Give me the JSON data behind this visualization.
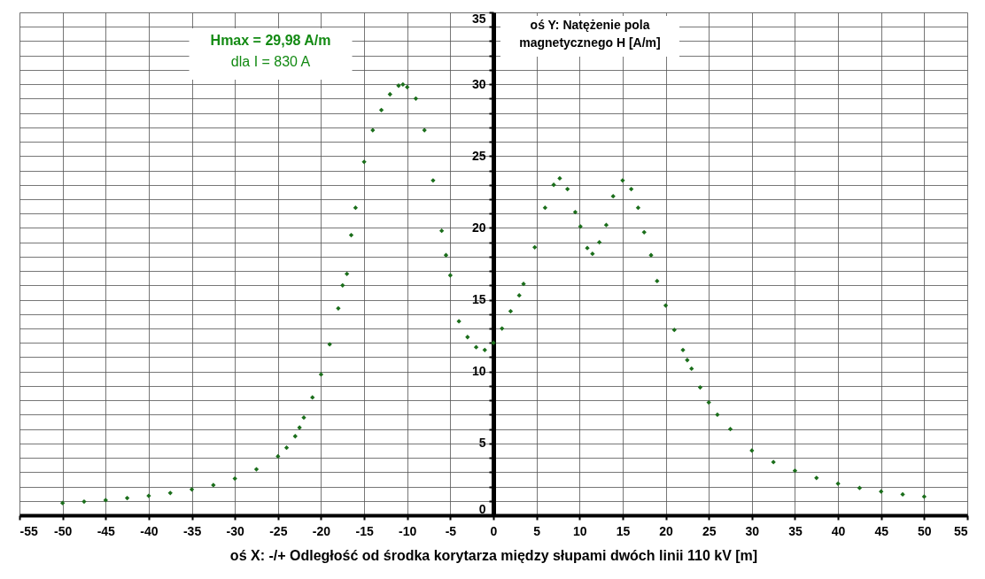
{
  "chart_data": {
    "type": "scatter",
    "xlabel": "oś X:  -/+ Odległość od środka korytarza między słupami dwóch linii 110 kV [m]",
    "ylabel": "oś Y: Natężenie pola magnetycznego H [A/m]",
    "annotations": [
      "Hmax = 29,98 A/m",
      "dla I = 830 A"
    ],
    "xlim": [
      -55,
      55
    ],
    "ylim": [
      0,
      35
    ],
    "xticks": [
      -55,
      -50,
      -45,
      -40,
      -35,
      -30,
      -25,
      -20,
      -15,
      -10,
      -5,
      0,
      5,
      10,
      15,
      20,
      25,
      30,
      35,
      40,
      45,
      50,
      55
    ],
    "yticks": [
      0,
      {
        "value": 1,
        "label": null
      },
      {
        "value": 2,
        "label": null
      },
      {
        "value": 3,
        "label": null
      },
      {
        "value": 4,
        "label": null
      },
      5,
      {
        "value": 6,
        "label": null
      },
      {
        "value": 7,
        "label": null
      },
      {
        "value": 8,
        "label": null
      },
      {
        "value": 9,
        "label": null
      },
      10,
      {
        "value": 11,
        "label": null
      },
      {
        "value": 12,
        "label": null
      },
      {
        "value": 13,
        "label": null
      },
      {
        "value": 14,
        "label": null
      },
      15,
      {
        "value": 16,
        "label": null
      },
      {
        "value": 17,
        "label": null
      },
      {
        "value": 18,
        "label": null
      },
      {
        "value": 19,
        "label": null
      },
      20,
      {
        "value": 21,
        "label": null
      },
      {
        "value": 22,
        "label": null
      },
      {
        "value": 23,
        "label": null
      },
      {
        "value": 24,
        "label": null
      },
      25,
      {
        "value": 26,
        "label": null
      },
      {
        "value": 27,
        "label": null
      },
      {
        "value": 28,
        "label": null
      },
      {
        "value": 29,
        "label": null
      },
      30,
      {
        "value": 31,
        "label": null
      },
      {
        "value": 32,
        "label": null
      },
      {
        "value": 33,
        "label": null
      },
      {
        "value": 34,
        "label": null
      },
      35
    ],
    "grid": true,
    "marker": "diamond",
    "series": [
      {
        "color": "#1b6e1b",
        "x": [
          -50,
          -47.5,
          -45,
          -42.5,
          -40,
          -37.5,
          -35,
          -32.5,
          -30,
          -27.5,
          -25,
          -24,
          -23,
          -22.5,
          -22,
          -21,
          -20,
          -19,
          -18,
          -17.5,
          -17,
          -16.5,
          -16,
          -15,
          -14,
          -13,
          -12,
          -11,
          -10.5,
          -10,
          -9,
          -8,
          -7,
          -6,
          -5.5,
          -5,
          -4,
          -3,
          -2,
          -1,
          0,
          1,
          2,
          3,
          3.5,
          4.8,
          6,
          7,
          7.7,
          8.6,
          9.5,
          10.1,
          10.9,
          11.5,
          12.3,
          13.1,
          13.9,
          15,
          16,
          16.8,
          17.5,
          18.3,
          19,
          20,
          21,
          22,
          22.5,
          23,
          24,
          25,
          26,
          27.5,
          30,
          32.5,
          35,
          37.5,
          40,
          42.5,
          45,
          47.5,
          50
        ],
        "values": [
          0.85,
          0.95,
          1.05,
          1.2,
          1.35,
          1.55,
          1.8,
          2.1,
          2.55,
          3.2,
          4.1,
          4.7,
          5.5,
          6.1,
          6.8,
          8.2,
          9.8,
          11.9,
          14.4,
          16.0,
          16.8,
          19.5,
          21.4,
          24.6,
          26.8,
          28.2,
          29.3,
          29.9,
          29.98,
          29.8,
          29.0,
          26.8,
          23.3,
          19.8,
          18.1,
          16.7,
          13.5,
          12.4,
          11.7,
          11.5,
          12.0,
          13.0,
          14.2,
          15.3,
          16.1,
          18.65,
          21.4,
          23.0,
          23.45,
          22.7,
          21.1,
          20.1,
          18.6,
          18.2,
          19.0,
          20.2,
          22.2,
          23.3,
          22.7,
          21.4,
          19.7,
          18.1,
          16.3,
          14.6,
          12.9,
          11.5,
          10.8,
          10.2,
          8.9,
          7.85,
          7.0,
          6.0,
          4.5,
          3.7,
          3.1,
          2.6,
          2.2,
          1.9,
          1.65,
          1.45,
          1.3
        ]
      }
    ]
  }
}
